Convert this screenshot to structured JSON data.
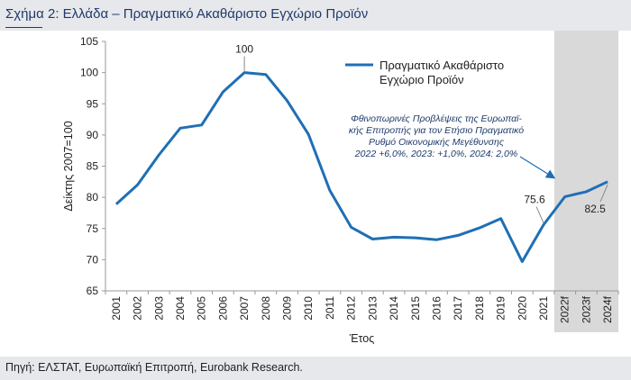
{
  "header": {
    "title": "Σχήμα 2: Ελλάδα – Πραγματικό Ακαθάριστο Εγχώριο Προϊόν"
  },
  "footer": {
    "source": "Πηγή: ΕΛΣΤΑΤ, Ευρωπαϊκή Επιτροπή, Eurobank Research."
  },
  "colors": {
    "line": "#1f6fb5",
    "forecast_band": "#d9d9d9",
    "title_bar": "#e7e8ec"
  },
  "chart_data": {
    "type": "line",
    "xlabel": "Έτος",
    "ylabel": "Δείκτης 2007=100",
    "ylim": [
      65,
      105
    ],
    "yticks": [
      65,
      70,
      75,
      80,
      85,
      90,
      95,
      100,
      105
    ],
    "grid": false,
    "legend_position": "top-right",
    "categories": [
      "2001",
      "2002",
      "2003",
      "2004",
      "2005",
      "2006",
      "2007",
      "2008",
      "2009",
      "2010",
      "2011",
      "2012",
      "2013",
      "2014",
      "2015",
      "2016",
      "2017",
      "2018",
      "2019",
      "2020",
      "2021",
      "2022f",
      "2023f",
      "2024f"
    ],
    "forecast_categories": [
      "2022f",
      "2023f",
      "2024f"
    ],
    "series": [
      {
        "name": "Πραγματικό Ακαθάριστο Εγχώριο Προϊόν",
        "values": [
          78.9,
          82.0,
          86.8,
          91.1,
          91.6,
          96.9,
          100.0,
          99.7,
          95.5,
          90.1,
          81.1,
          75.2,
          73.3,
          73.6,
          73.5,
          73.2,
          73.9,
          75.1,
          76.6,
          69.7,
          75.6,
          80.1,
          80.9,
          82.5
        ]
      }
    ],
    "annotations": {
      "label_2007": "100",
      "label_2021": "75.6",
      "label_2024f": "82.5",
      "note_lines": [
        "Φθινοπωρινές Προβλέψεις της Ευρωπαϊ-",
        "κής Επιτροπής για τον Ετήσιο Πραγματικό",
        "Ρυθμό Οικονομικής Μεγέθυνσης",
        "2022 +6,0%, 2023: +1,0%, 2024: 2,0%"
      ]
    }
  }
}
